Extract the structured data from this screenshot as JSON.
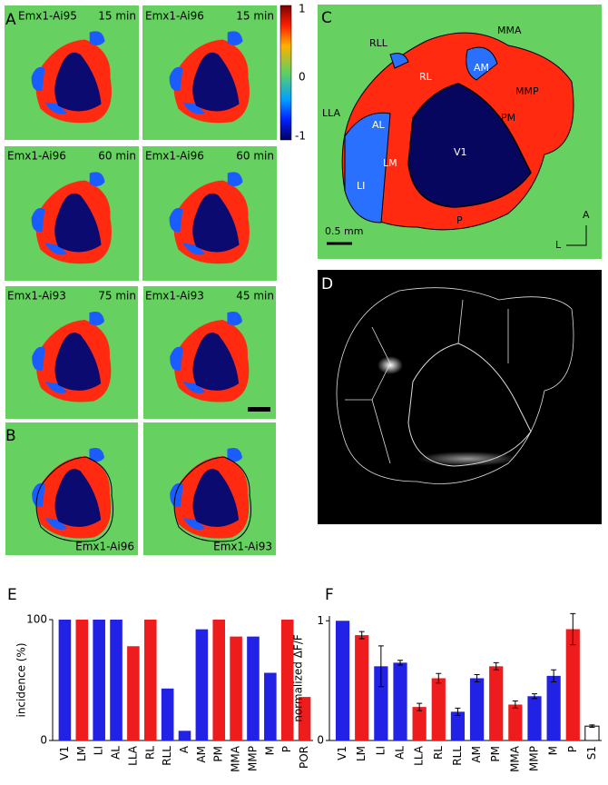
{
  "panels": {
    "A": {
      "label": "A",
      "images": [
        {
          "line": "Emx1-Ai95",
          "time": "15 min"
        },
        {
          "line": "Emx1-Ai96",
          "time": "15 min"
        },
        {
          "line": "Emx1-Ai96",
          "time": "60 min"
        },
        {
          "line": "Emx1-Ai96",
          "time": "60 min"
        },
        {
          "line": "Emx1-Ai93",
          "time": "75 min"
        },
        {
          "line": "Emx1-Ai93",
          "time": "45 min"
        }
      ]
    },
    "colorbar": {
      "ticks": [
        1,
        0,
        -1
      ]
    },
    "B": {
      "label": "B",
      "images": [
        {
          "line": "Emx1-Ai96"
        },
        {
          "line": "Emx1-Ai93"
        }
      ]
    },
    "C": {
      "label": "C",
      "areas": [
        "RLL",
        "MMA",
        "RL",
        "AM",
        "MMP",
        "LLA",
        "AL",
        "PM",
        "V1",
        "LM",
        "LI",
        "P"
      ],
      "scale": "0.5 mm",
      "axes": [
        "A",
        "L"
      ]
    },
    "D": {
      "label": "D"
    }
  },
  "chart_data": [
    {
      "type": "bar",
      "label": "E",
      "ylabel": "incidence (%)",
      "categories": [
        "V1",
        "LM",
        "LI",
        "AL",
        "LLA",
        "RL",
        "RLL",
        "A",
        "AM",
        "PM",
        "MMA",
        "MMP",
        "M",
        "P",
        "POR"
      ],
      "values": [
        100,
        100,
        100,
        100,
        78,
        100,
        43,
        8,
        92,
        100,
        86,
        86,
        56,
        100,
        36
      ],
      "colors": [
        "#2222e6",
        "#ee1c1c",
        "#2222e6",
        "#2222e6",
        "#ee1c1c",
        "#ee1c1c",
        "#2222e6",
        "#2222e6",
        "#2222e6",
        "#ee1c1c",
        "#ee1c1c",
        "#2222e6",
        "#2222e6",
        "#ee1c1c",
        "#ee1c1c"
      ],
      "ylim": [
        0,
        100
      ],
      "yticks": [
        0,
        100
      ]
    },
    {
      "type": "bar",
      "label": "F",
      "ylabel": "normalized ΔF/F",
      "categories": [
        "V1",
        "LM",
        "LI",
        "AL",
        "LLA",
        "RL",
        "RLL",
        "AM",
        "PM",
        "MMA",
        "MMP",
        "M",
        "P",
        "S1"
      ],
      "values": [
        1.0,
        0.88,
        0.62,
        0.65,
        0.28,
        0.52,
        0.24,
        0.52,
        0.62,
        0.3,
        0.37,
        0.54,
        0.93,
        0.12
      ],
      "errors": [
        0,
        0.03,
        0.17,
        0.02,
        0.03,
        0.04,
        0.03,
        0.03,
        0.03,
        0.03,
        0.02,
        0.05,
        0.13,
        0.01
      ],
      "colors": [
        "#2222e6",
        "#ee1c1c",
        "#2222e6",
        "#2222e6",
        "#ee1c1c",
        "#ee1c1c",
        "#2222e6",
        "#2222e6",
        "#ee1c1c",
        "#ee1c1c",
        "#2222e6",
        "#2222e6",
        "#ee1c1c",
        "#ffffff"
      ],
      "ylim": [
        0,
        1.04
      ],
      "yticks": [
        0,
        1
      ]
    }
  ]
}
